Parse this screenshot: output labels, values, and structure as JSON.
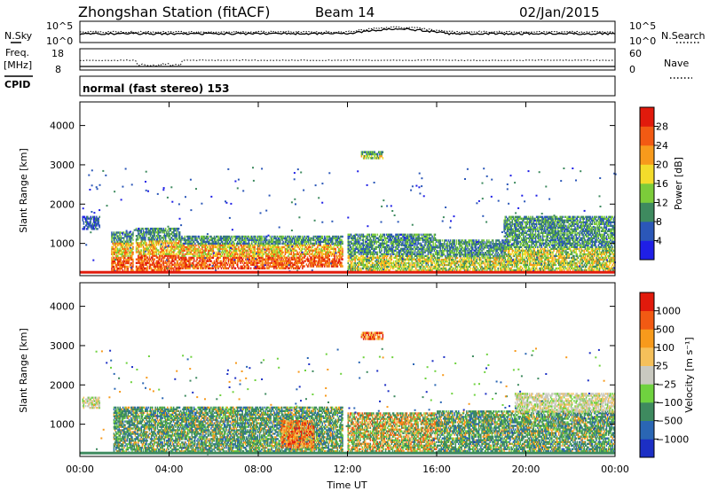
{
  "header": {
    "station": "Zhongshan Station (fitACF)",
    "beam": "Beam 14",
    "date": "02/Jan/2015"
  },
  "noise_panel": {
    "left_label": "N.Sky",
    "left_ticks": [
      "10^5",
      "10^0"
    ],
    "right_label": "N.Search",
    "right_ticks": [
      "10^5",
      "10^0"
    ]
  },
  "freq_panel": {
    "left_label_1": "Freq.",
    "left_label_2": "[MHz]",
    "left_ticks": [
      "18",
      "8"
    ],
    "right_label": "Nave",
    "right_ticks": [
      "60",
      "0"
    ]
  },
  "cpid": {
    "label": "CPID",
    "text": "normal (fast stereo) 153"
  },
  "x_axis": {
    "label": "Time UT",
    "ticks": [
      "00:00",
      "04:00",
      "08:00",
      "12:00",
      "16:00",
      "20:00",
      "00:00"
    ]
  },
  "colors": {
    "power": [
      "#1f1fe6",
      "#2b57b8",
      "#3e8a5f",
      "#7ccc3a",
      "#f3dc2b",
      "#f79a1c",
      "#f25a13",
      "#e11a0c"
    ],
    "velocity": [
      "#e11a0c",
      "#f25a13",
      "#f79a1c",
      "#f5c05a",
      "#c9c9c0",
      "#6fd23f",
      "#3e8a5f",
      "#2a66b4",
      "#1c2fc4"
    ]
  },
  "chart_data": [
    {
      "type": "heatmap",
      "panel": "power",
      "ylabel": "Slant Range [km]",
      "xlabel": "Time UT",
      "x_range_hours": [
        0,
        24
      ],
      "ylim": [
        180,
        4600
      ],
      "yticks": [
        "1000",
        "2000",
        "3000",
        "4000"
      ],
      "colorbar": {
        "label": "Power [dB]",
        "ticks": [
          "4",
          "8",
          "12",
          "16",
          "20",
          "24",
          "28"
        ]
      },
      "echo_regions": [
        {
          "t": [
            0.1,
            0.9
          ],
          "range_km": [
            1350,
            1700
          ],
          "level": "low"
        },
        {
          "t": [
            1.4,
            2.4
          ],
          "range_km": [
            250,
            1300
          ],
          "level": "high"
        },
        {
          "t": [
            2.5,
            4.5
          ],
          "range_km": [
            300,
            1400
          ],
          "level": "high"
        },
        {
          "t": [
            4.5,
            10.0
          ],
          "range_km": [
            350,
            1200
          ],
          "level": "high"
        },
        {
          "t": [
            10.0,
            11.8
          ],
          "range_km": [
            400,
            1200
          ],
          "level": "high"
        },
        {
          "t": [
            12.6,
            13.6
          ],
          "range_km": [
            3150,
            3350
          ],
          "level": "medium"
        },
        {
          "t": [
            12.0,
            16.0
          ],
          "range_km": [
            300,
            1250
          ],
          "level": "medium"
        },
        {
          "t": [
            16.0,
            19.0
          ],
          "range_km": [
            300,
            1100
          ],
          "level": "medium"
        },
        {
          "t": [
            19.0,
            24.0
          ],
          "range_km": [
            300,
            1700
          ],
          "level": "medium"
        }
      ]
    },
    {
      "type": "heatmap",
      "panel": "velocity",
      "ylabel": "Slant Range [km]",
      "xlabel": "Time UT",
      "x_range_hours": [
        0,
        24
      ],
      "ylim": [
        180,
        4600
      ],
      "yticks": [
        "1000",
        "2000",
        "3000",
        "4000"
      ],
      "colorbar": {
        "label": "Velocity [m s⁻¹]",
        "ticks": [
          "1000",
          "500",
          "100",
          "25",
          "−25",
          "−100",
          "−500",
          "−1000"
        ]
      },
      "echo_regions": [
        {
          "t": [
            0.1,
            0.9
          ],
          "range_km": [
            1400,
            1700
          ],
          "level": "near-zero"
        },
        {
          "t": [
            1.5,
            11.8
          ],
          "range_km": [
            250,
            1450
          ],
          "level": "positive"
        },
        {
          "t": [
            9.0,
            10.5
          ],
          "range_km": [
            400,
            1100
          ],
          "level": "negative"
        },
        {
          "t": [
            12.6,
            13.6
          ],
          "range_km": [
            3150,
            3350
          ],
          "level": "negative"
        },
        {
          "t": [
            12.0,
            16.0
          ],
          "range_km": [
            300,
            1300
          ],
          "level": "mixed"
        },
        {
          "t": [
            16.0,
            24.0
          ],
          "range_km": [
            300,
            1350
          ],
          "level": "positive"
        },
        {
          "t": [
            19.5,
            24.0
          ],
          "range_km": [
            1300,
            1800
          ],
          "level": "near-zero"
        }
      ]
    }
  ]
}
